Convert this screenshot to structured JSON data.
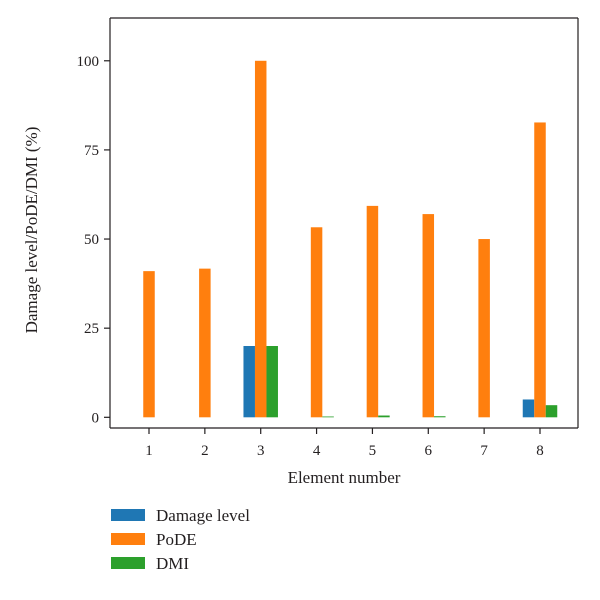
{
  "chart_data": {
    "type": "bar",
    "title": "",
    "xlabel": "Element number",
    "ylabel": "Damage level/PoDE/DMI (%)",
    "categories": [
      "1",
      "2",
      "3",
      "4",
      "5",
      "6",
      "7",
      "8"
    ],
    "series": [
      {
        "name": "Damage level",
        "color": "#1f77b4",
        "values": [
          0,
          0,
          20,
          0,
          0,
          0,
          0,
          5
        ]
      },
      {
        "name": "PoDE",
        "color": "#ff7f0e",
        "values": [
          41,
          41.7,
          100,
          53.3,
          59.3,
          57,
          50,
          82.7
        ]
      },
      {
        "name": "DMI",
        "color": "#2ca02c",
        "values": [
          0,
          0,
          20,
          0.2,
          0.5,
          0.3,
          0,
          3.4
        ]
      }
    ],
    "ylim": [
      -3,
      112
    ],
    "yticks": [
      "0",
      "25",
      "50",
      "75",
      "100"
    ],
    "grid": false,
    "legend_position": "below plot, left"
  }
}
